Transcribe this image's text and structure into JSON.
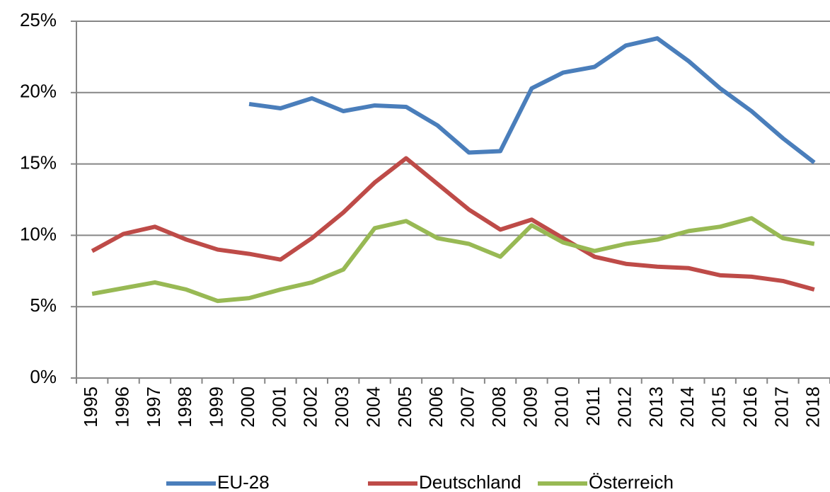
{
  "chart_data": {
    "type": "line",
    "categories": [
      "1995",
      "1996",
      "1997",
      "1998",
      "1999",
      "2000",
      "2001",
      "2002",
      "2003",
      "2004",
      "2005",
      "2006",
      "2007",
      "2008",
      "2009",
      "2010",
      "2011",
      "2012",
      "2013",
      "2014",
      "2015",
      "2016",
      "2017",
      "2018"
    ],
    "series": [
      {
        "name": "EU-28",
        "color": "#4a7ebb",
        "values": [
          null,
          null,
          null,
          null,
          null,
          19.2,
          18.9,
          19.6,
          18.7,
          19.1,
          19.0,
          17.7,
          15.8,
          15.9,
          20.3,
          21.4,
          21.8,
          23.3,
          23.8,
          22.2,
          20.3,
          18.7,
          16.8,
          15.1
        ]
      },
      {
        "name": "Deutschland",
        "color": "#be4b48",
        "values": [
          8.9,
          10.1,
          10.6,
          9.7,
          9.0,
          8.7,
          8.3,
          9.8,
          11.6,
          13.7,
          15.4,
          13.6,
          11.8,
          10.4,
          11.1,
          9.8,
          8.5,
          8.0,
          7.8,
          7.7,
          7.2,
          7.1,
          6.8,
          6.2
        ]
      },
      {
        "name": "Österreich",
        "color": "#98b954",
        "values": [
          5.9,
          6.3,
          6.7,
          6.2,
          5.4,
          5.6,
          6.2,
          6.7,
          7.6,
          10.5,
          11.0,
          9.8,
          9.4,
          8.5,
          10.7,
          9.5,
          8.9,
          9.4,
          9.7,
          10.3,
          10.6,
          11.2,
          9.8,
          9.4
        ]
      }
    ],
    "ylim": [
      0,
      25
    ],
    "yticks": [
      {
        "value": 0,
        "label": "0%"
      },
      {
        "value": 5,
        "label": "5%"
      },
      {
        "value": 10,
        "label": "10%"
      },
      {
        "value": 15,
        "label": "15%"
      },
      {
        "value": 20,
        "label": "20%"
      },
      {
        "value": 25,
        "label": "25%"
      }
    ],
    "grid": true,
    "legend": "bottom"
  }
}
